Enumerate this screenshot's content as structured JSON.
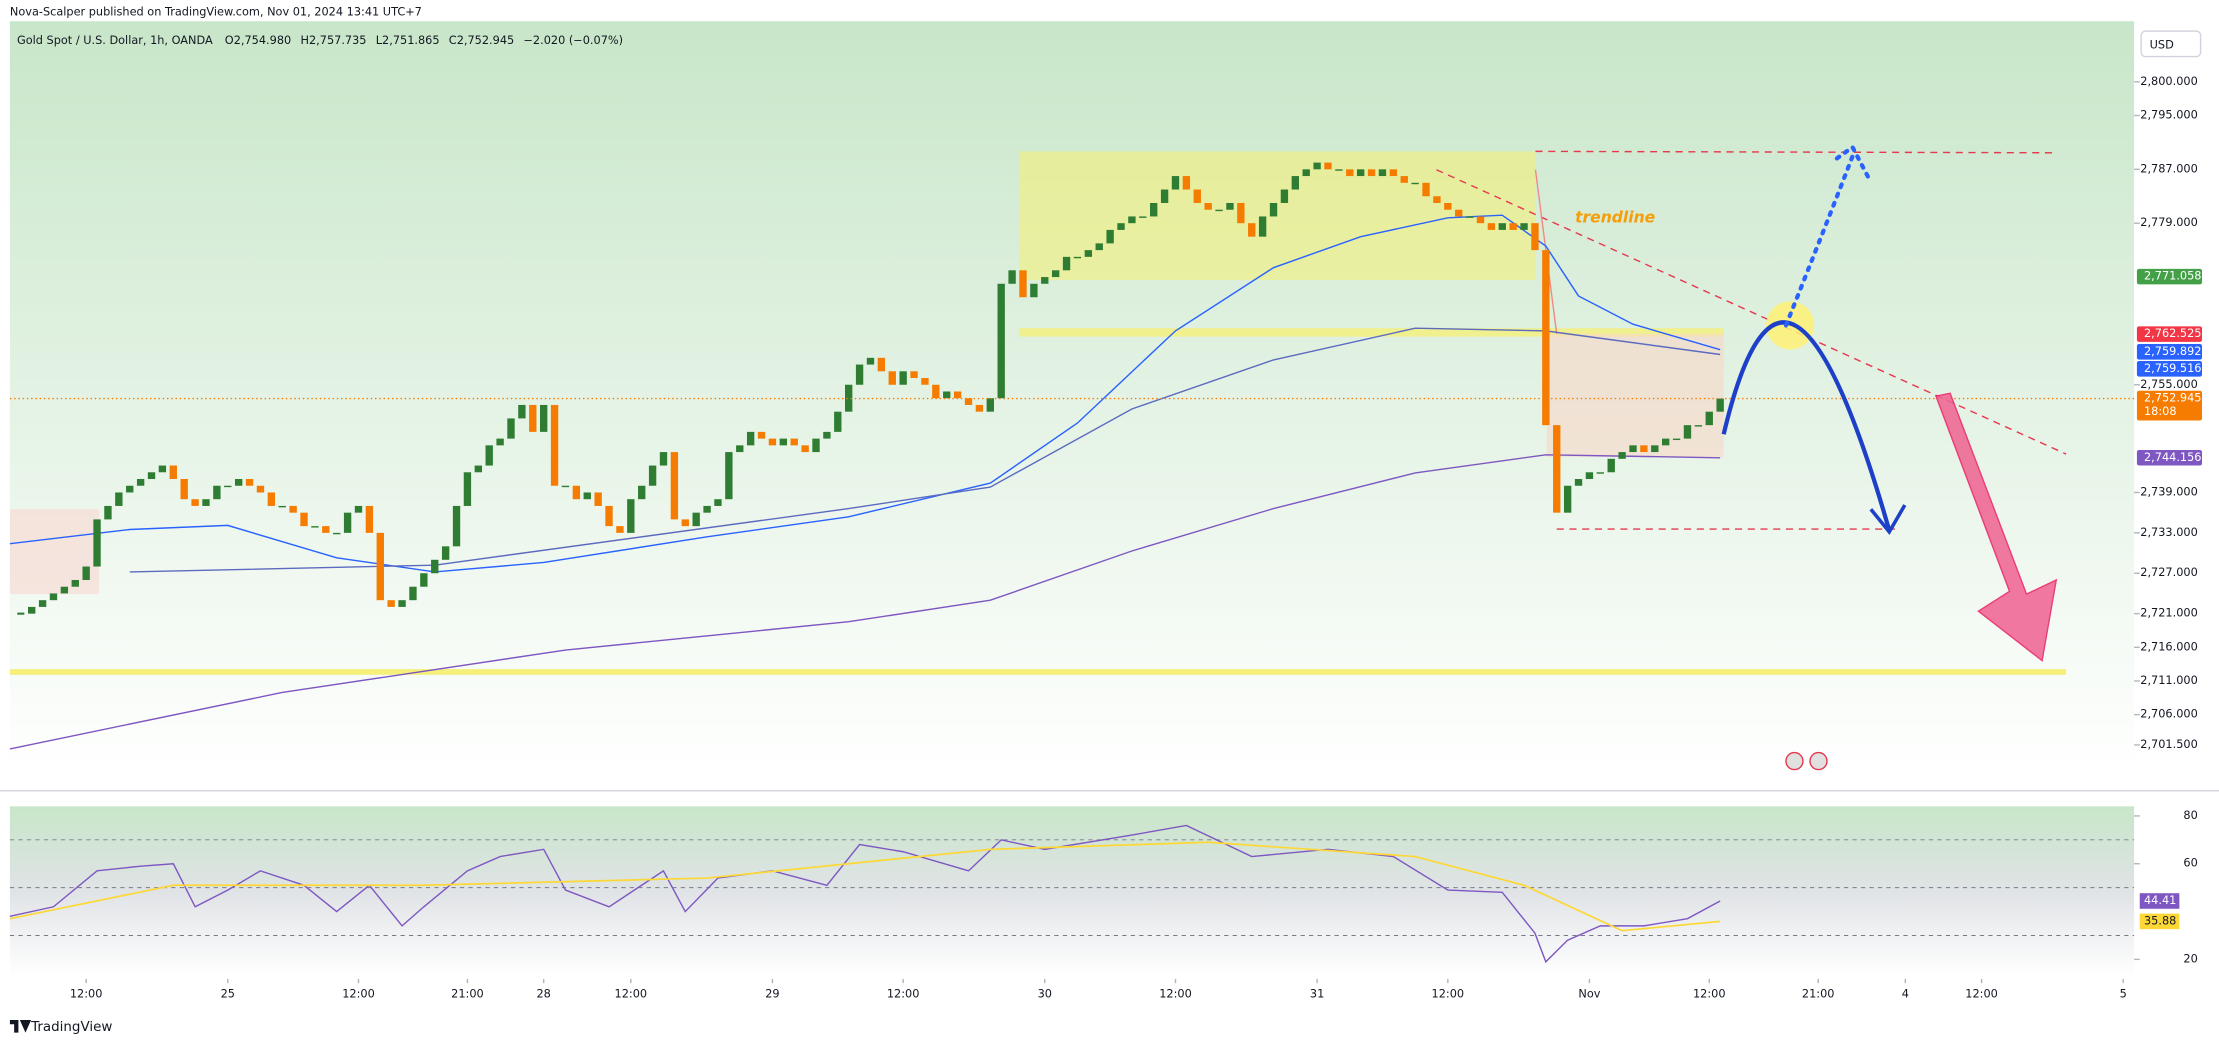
{
  "header": {
    "published": "Nova-Scalper published on TradingView.com, Nov 01, 2024 13:41 UTC+7",
    "symbol": "Gold Spot / U.S. Dollar, 1h, OANDA",
    "ohlc": [
      "O2,754.980",
      "H2,757.735",
      "L2,751.865",
      "C2,752.945"
    ],
    "change": "−2.020 (−0.07%)",
    "currency": "USD",
    "brand": "TradingView",
    "annotation": "trendline"
  },
  "chart_data": [
    {
      "type": "candlestick",
      "up_color": "#2e7d32",
      "down_color": "#f57c00",
      "close": [
        2721,
        2722,
        2723,
        2724,
        2725,
        2726,
        2728,
        2735,
        2737,
        2739,
        2740,
        2741,
        2742,
        2743,
        2741,
        2738,
        2737,
        2738,
        2740,
        2740,
        2741,
        2740,
        2739,
        2737,
        2737,
        2736,
        2734,
        2734,
        2733,
        2733,
        2736,
        2737,
        2733,
        2723,
        2722,
        2723,
        2725,
        2727,
        2729,
        2731,
        2737,
        2742,
        2743,
        2746,
        2747,
        2750,
        2752,
        2748,
        2752,
        2740,
        2740,
        2738,
        2739,
        2737,
        2734,
        2733,
        2738,
        2740,
        2743,
        2745,
        2735,
        2734,
        2736,
        2737,
        2738,
        2745,
        2746,
        2748,
        2747,
        2746,
        2747,
        2746,
        2745,
        2747,
        2748,
        2751,
        2755,
        2758,
        2759,
        2757,
        2755,
        2757,
        2756,
        2755,
        2753,
        2754,
        2753,
        2752,
        2751,
        2753,
        2770,
        2772,
        2768,
        2770,
        2771,
        2772,
        2774,
        2774,
        2775,
        2776,
        2778,
        2779,
        2780,
        2780,
        2782,
        2784,
        2786,
        2784,
        2782,
        2781,
        2781,
        2782,
        2779,
        2777,
        2780,
        2782,
        2784,
        2786,
        2787,
        2788,
        2787,
        2787,
        2786,
        2787,
        2786,
        2787,
        2786,
        2785,
        2785,
        2783,
        2782,
        2781,
        2780,
        2780,
        2779,
        2778,
        2779,
        2778,
        2779,
        2775,
        2749,
        2736,
        2740,
        2741,
        2742,
        2742,
        2744,
        2745,
        2746,
        2745,
        2746,
        2747,
        2747,
        2749,
        2749,
        2751,
        2752.945
      ],
      "lines": [
        {
          "color": "#2962ff",
          "x": [
            -1,
            10,
            19,
            29,
            38,
            48,
            63,
            76,
            89,
            97,
            106,
            115,
            123,
            131,
            136,
            140,
            143,
            148,
            156
          ],
          "values": [
            2731.4,
            2733.5,
            2734.1,
            2729.3,
            2727.2,
            2728.6,
            2732.4,
            2735.4,
            2740.4,
            2749.3,
            2763,
            2772.4,
            2777,
            2779.8,
            2780.2,
            2775.6,
            2768.2,
            2764,
            2760.2
          ]
        },
        {
          "color": "#5c6bc0",
          "x": [
            10,
            38,
            76,
            89,
            102,
            115,
            128,
            140,
            156
          ],
          "values": [
            2727.2,
            2728.2,
            2736.6,
            2739.8,
            2751.4,
            2758.7,
            2763.4,
            2763,
            2759.5
          ]
        },
        {
          "color": "#7e57c2",
          "x": [
            -1,
            24,
            50,
            76,
            89,
            102,
            115,
            128,
            140,
            156
          ],
          "values": [
            2700.9,
            2709.3,
            2715.6,
            2719.8,
            2723,
            2730.3,
            2736.6,
            2741.9,
            2744.6,
            2744.156
          ]
        }
      ],
      "xlim": [
        -1,
        194
      ],
      "ylim": [
        2697,
        2809
      ],
      "yticks": [
        {
          "value": 2800,
          "label": "2,800.000"
        },
        {
          "value": 2795,
          "label": "2,795.000"
        },
        {
          "value": 2787,
          "label": "2,787.000"
        },
        {
          "value": 2779,
          "label": "2,779.000"
        },
        {
          "value": 2755,
          "label": "2,755.000"
        },
        {
          "value": 2739,
          "label": "2,739.000"
        },
        {
          "value": 2733,
          "label": "2,733.000"
        },
        {
          "value": 2727,
          "label": "2,727.000"
        },
        {
          "value": 2721,
          "label": "2,721.000"
        },
        {
          "value": 2716,
          "label": "2,716.000"
        },
        {
          "value": 2711,
          "label": "2,711.000"
        },
        {
          "value": 2706,
          "label": "2,706.000"
        },
        {
          "value": 2701.5,
          "label": "2,701.500"
        }
      ],
      "xticks": [
        {
          "value": 6,
          "label": "12:00"
        },
        {
          "value": 19,
          "label": "25"
        },
        {
          "value": 31,
          "label": "12:00"
        },
        {
          "value": 41,
          "label": "21:00"
        },
        {
          "value": 48,
          "label": "28"
        },
        {
          "value": 56,
          "label": "12:00"
        },
        {
          "value": 69,
          "label": "29"
        },
        {
          "value": 81,
          "label": "12:00"
        },
        {
          "value": 94,
          "label": "30"
        },
        {
          "value": 106,
          "label": "12:00"
        },
        {
          "value": 119,
          "label": "31"
        },
        {
          "value": 131,
          "label": "12:00"
        },
        {
          "value": 144,
          "label": "Nov"
        },
        {
          "value": 155,
          "label": "12:00"
        },
        {
          "value": 165,
          "label": "21:00"
        },
        {
          "value": 173,
          "label": "4"
        },
        {
          "value": 180,
          "label": "12:00"
        },
        {
          "value": 193,
          "label": "5"
        }
      ],
      "price_labels": [
        {
          "value": 2771.058,
          "label": "2,771.058",
          "color": "#43a047"
        },
        {
          "value": 2762.525,
          "label": "2,762.525",
          "color": "#f23645"
        },
        {
          "value": 2759.892,
          "label": "2,759.892",
          "color": "#2962ff"
        },
        {
          "value": 2759.516,
          "label": "2,759.516",
          "color": "#2962ff"
        },
        {
          "value": 2752.945,
          "label": "2,752.945",
          "color": "#f57c00"
        },
        {
          "value": 2744.156,
          "label": "2,744.156",
          "color": "#7e57c2"
        }
      ],
      "countdown": "18:08"
    },
    {
      "type": "line",
      "xlim": [
        -1,
        194
      ],
      "ylim": [
        13,
        84
      ],
      "yticks": [
        80,
        60,
        20
      ],
      "levels": [
        70,
        50,
        30
      ],
      "series": [
        {
          "color": "#7e57c2",
          "x": [
            -1,
            3,
            7,
            11,
            14,
            16,
            19,
            22,
            26,
            29,
            32,
            35,
            37,
            41,
            44,
            48,
            50,
            54,
            59,
            61,
            64,
            69,
            74,
            77,
            81,
            87,
            90,
            94,
            102,
            107,
            113,
            120,
            126,
            131,
            136,
            139,
            140,
            142,
            145,
            149,
            153,
            156
          ],
          "values": [
            38,
            42,
            57,
            59,
            60,
            42,
            49,
            57,
            51,
            40,
            51,
            34,
            42,
            57,
            63,
            66,
            49,
            42,
            57,
            40,
            54,
            57,
            51,
            68,
            65,
            57,
            70,
            66,
            72,
            76,
            63,
            66,
            63,
            49,
            48,
            31,
            19,
            28,
            34,
            34,
            37,
            44.41
          ]
        },
        {
          "color": "#fdd835",
          "x": [
            -1,
            14,
            37,
            63,
            89,
            109,
            128,
            138,
            147,
            156
          ],
          "values": [
            37,
            51,
            51,
            54,
            66,
            69,
            63,
            51,
            32,
            35.88
          ]
        }
      ],
      "end_labels": [
        {
          "value": 44.41,
          "color": "#7e57c2"
        },
        {
          "value": 35.88,
          "color": "#fdd835"
        }
      ]
    }
  ]
}
